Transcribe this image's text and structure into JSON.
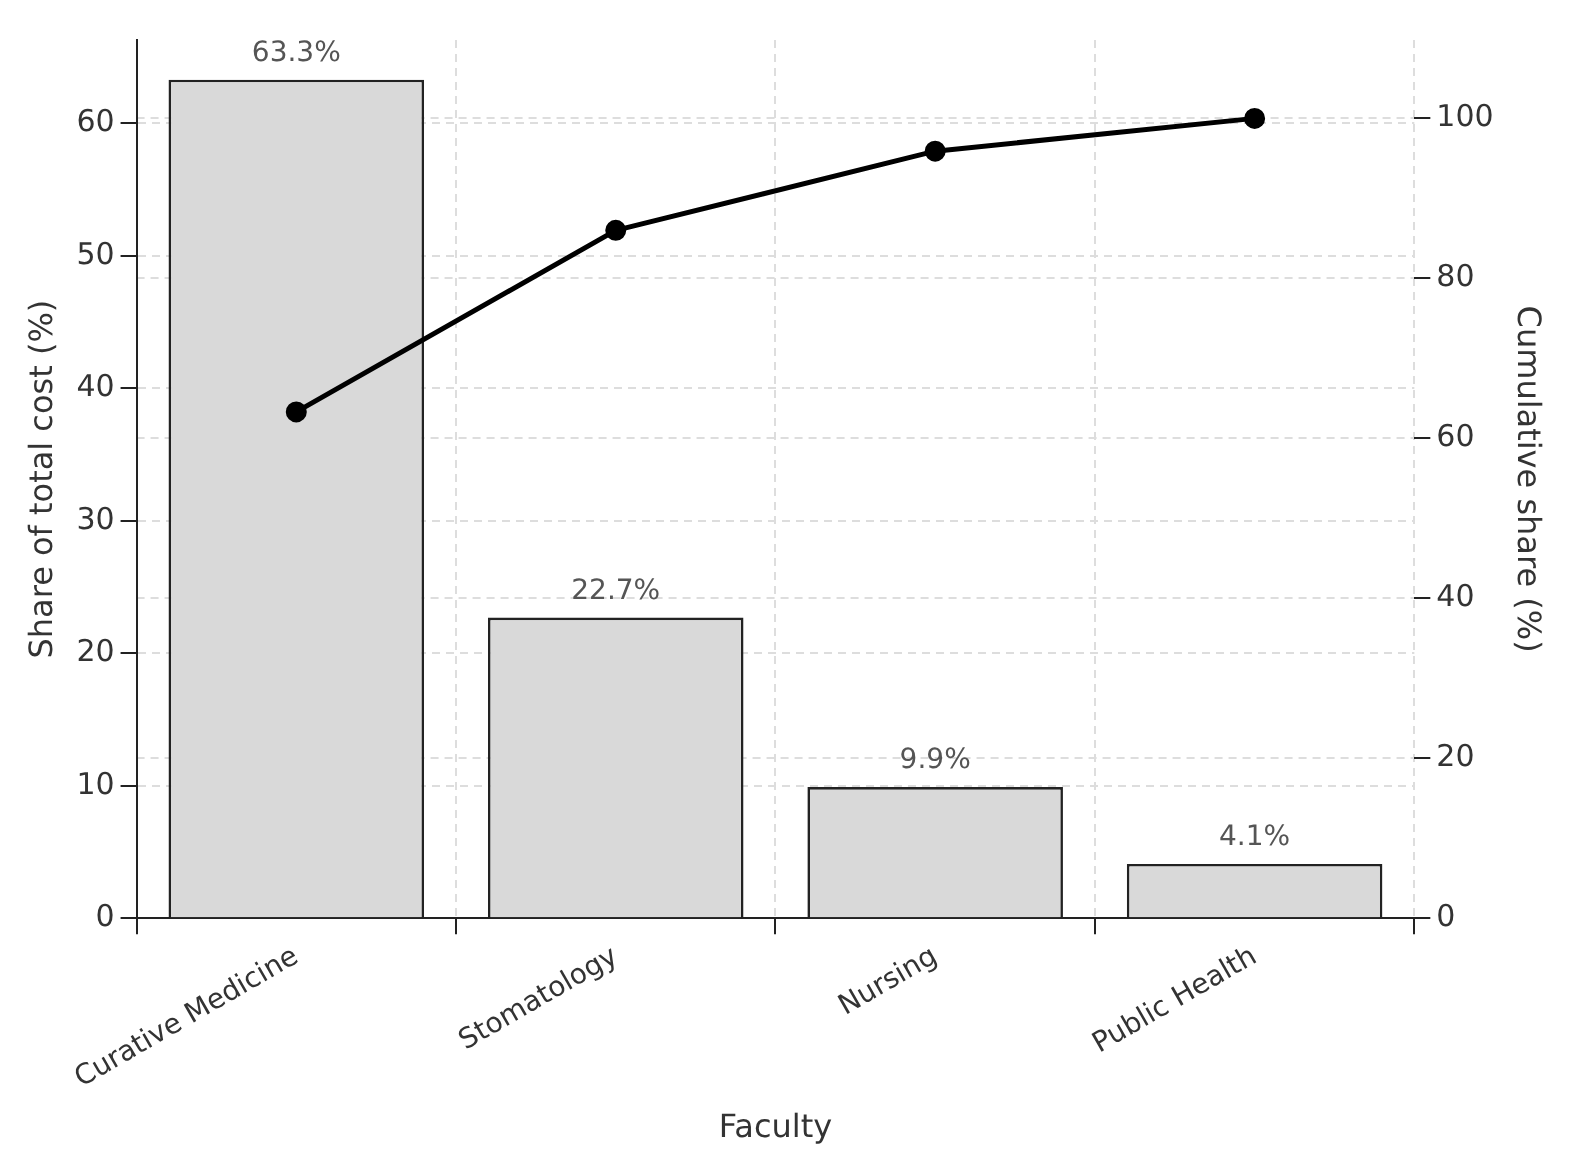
{
  "chart_data": {
    "type": "bar",
    "xlabel": "Faculty",
    "ylabel": "Share of total cost (%)",
    "y2label": "Cumulative share (%)",
    "categories": [
      "Curative Medicine",
      "Stomatology",
      "Nursing",
      "Public Health"
    ],
    "series": [
      {
        "color": "#d9d9d9",
        "values": [
          63.3,
          22.7,
          9.9,
          4.1
        ],
        "value_labels": [
          "63.3%",
          "22.7%",
          "9.9%",
          "4.1%"
        ]
      },
      {
        "type": "line",
        "axis": "y2",
        "color": "#000000",
        "values": [
          63.3,
          86.0,
          95.9,
          100.0
        ],
        "marker": "circle",
        "line_style": "solid"
      }
    ],
    "ylim": [
      0,
      66.3
    ],
    "yticks": [
      0,
      10,
      20,
      30,
      40,
      50,
      60
    ],
    "y2lim": [
      0,
      109.8
    ],
    "y2ticks": [
      0,
      20,
      40,
      60,
      80,
      100
    ],
    "grid": true,
    "legend": false
  }
}
